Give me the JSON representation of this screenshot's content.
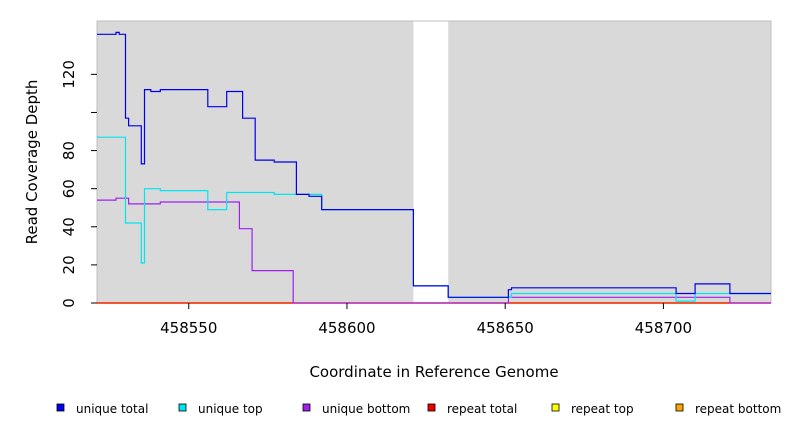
{
  "chart_data": {
    "type": "line",
    "title": "",
    "xlabel": "Coordinate in Reference Genome",
    "ylabel": "Read Coverage Depth",
    "xlim": [
      458521,
      458734
    ],
    "ylim": [
      0,
      148
    ],
    "x_ticks": [
      458550,
      458600,
      458650,
      458700
    ],
    "y_ticks": [
      0,
      20,
      40,
      60,
      80,
      100,
      120
    ],
    "y_tick_labels": [
      "0",
      "20",
      "40",
      "60",
      "80",
      "",
      "120"
    ],
    "shaded_regions": [
      [
        458521,
        458621
      ],
      [
        458632,
        458734
      ]
    ],
    "series": [
      {
        "name": "unique total",
        "color": "#0000ee",
        "x": [
          458521,
          458527,
          458528,
          458530,
          458531,
          458535,
          458536,
          458538,
          458541,
          458544,
          458556,
          458562,
          458567,
          458571,
          458577,
          458584,
          458588,
          458592,
          458621,
          458632,
          458651,
          458652,
          458703,
          458704,
          458710,
          458721,
          458734
        ],
        "y": [
          141,
          142,
          141,
          97,
          93,
          73,
          112,
          111,
          112,
          112,
          103,
          111,
          97,
          75,
          74,
          57,
          56,
          49,
          9,
          3,
          7,
          8,
          8,
          5,
          10,
          5,
          5
        ]
      },
      {
        "name": "unique top",
        "color": "#00e5ee",
        "x": [
          458521,
          458530,
          458535,
          458536,
          458541,
          458556,
          458562,
          458577,
          458584,
          458588,
          458592,
          458621,
          458632,
          458651,
          458652,
          458703,
          458704,
          458710,
          458721,
          458734
        ],
        "y": [
          87,
          42,
          21,
          60,
          59,
          49,
          58,
          57,
          57,
          57,
          49,
          9,
          3,
          3,
          5,
          5,
          1,
          5,
          5,
          5
        ]
      },
      {
        "name": "unique bottom",
        "color": "#a020f0",
        "x": [
          458521,
          458527,
          458531,
          458541,
          458566,
          458570,
          458583,
          458621,
          458632,
          458651,
          458652,
          458721,
          458734
        ],
        "y": [
          54,
          55,
          52,
          53,
          39,
          17,
          0,
          0,
          0,
          3,
          3,
          0,
          0
        ]
      },
      {
        "name": "repeat total",
        "color": "#ee0000",
        "x": [
          458521,
          458734
        ],
        "y": [
          0,
          0
        ]
      },
      {
        "name": "repeat top",
        "color": "#ffff00",
        "x": [
          458521,
          458734
        ],
        "y": [
          0,
          0
        ]
      },
      {
        "name": "repeat bottom",
        "color": "#ffa500",
        "x": [
          458521,
          458734
        ],
        "y": [
          0,
          0
        ]
      }
    ],
    "legend": [
      {
        "label": "unique total",
        "color": "#0000ee"
      },
      {
        "label": "unique top",
        "color": "#00e5ee"
      },
      {
        "label": "unique bottom",
        "color": "#a020f0"
      },
      {
        "label": "repeat total",
        "color": "#ee0000"
      },
      {
        "label": "repeat top",
        "color": "#ffff00"
      },
      {
        "label": "repeat bottom",
        "color": "#ffa500"
      }
    ],
    "legend_position": "bottom",
    "grid": false
  }
}
